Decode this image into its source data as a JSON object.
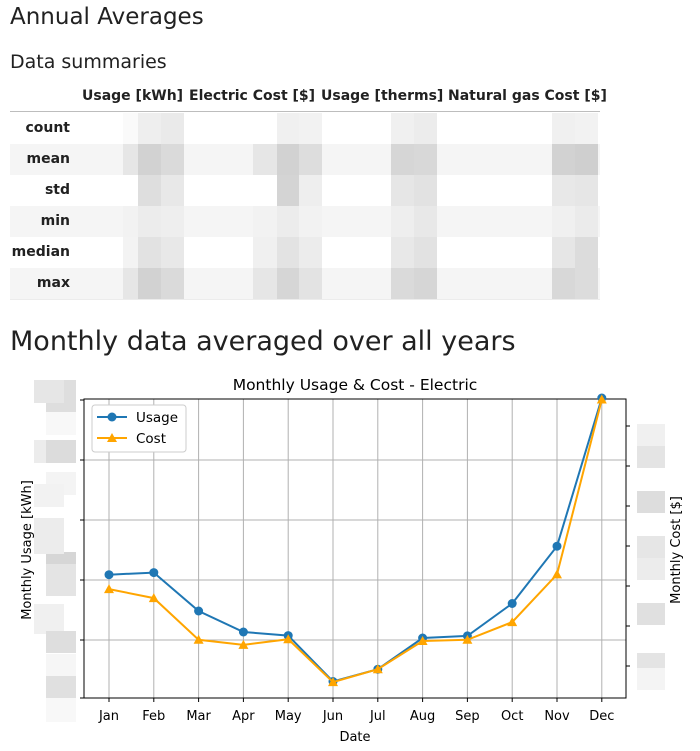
{
  "headings": {
    "annual": "Annual Averages",
    "summaries": "Data summaries",
    "monthly": "Monthly data averaged over all years"
  },
  "table": {
    "columns": [
      "Usage [kWh]",
      "Electric Cost [$]",
      "Usage [therms]",
      "Natural gas Cost [$]"
    ],
    "rows": [
      {
        "label": "count"
      },
      {
        "label": "mean"
      },
      {
        "label": "std"
      },
      {
        "label": "min"
      },
      {
        "label": "median"
      },
      {
        "label": "max"
      }
    ]
  },
  "chart_data": {
    "type": "line",
    "title": "Monthly Usage & Cost - Electric",
    "xlabel": "Date",
    "ylabel_left": "Monthly Usage [kWh]",
    "ylabel_right": "Monthly Cost [$]",
    "categories": [
      "Jan",
      "Feb",
      "Mar",
      "Apr",
      "May",
      "Jun",
      "Jul",
      "Aug",
      "Sep",
      "Oct",
      "Nov",
      "Dec"
    ],
    "ylim": [
      0,
      1
    ],
    "grid": true,
    "legend_position": "top-left",
    "series": [
      {
        "name": "Usage",
        "color": "#1f77b4",
        "marker": "circle",
        "values": [
          0.371,
          0.378,
          0.25,
          0.18,
          0.168,
          0.015,
          0.056,
          0.16,
          0.167,
          0.275,
          0.466,
          0.96
        ]
      },
      {
        "name": "Cost",
        "color": "#ffa500",
        "marker": "triangle",
        "values": [
          0.323,
          0.293,
          0.154,
          0.137,
          0.156,
          0.013,
          0.056,
          0.15,
          0.154,
          0.213,
          0.372,
          0.955
        ]
      }
    ]
  }
}
